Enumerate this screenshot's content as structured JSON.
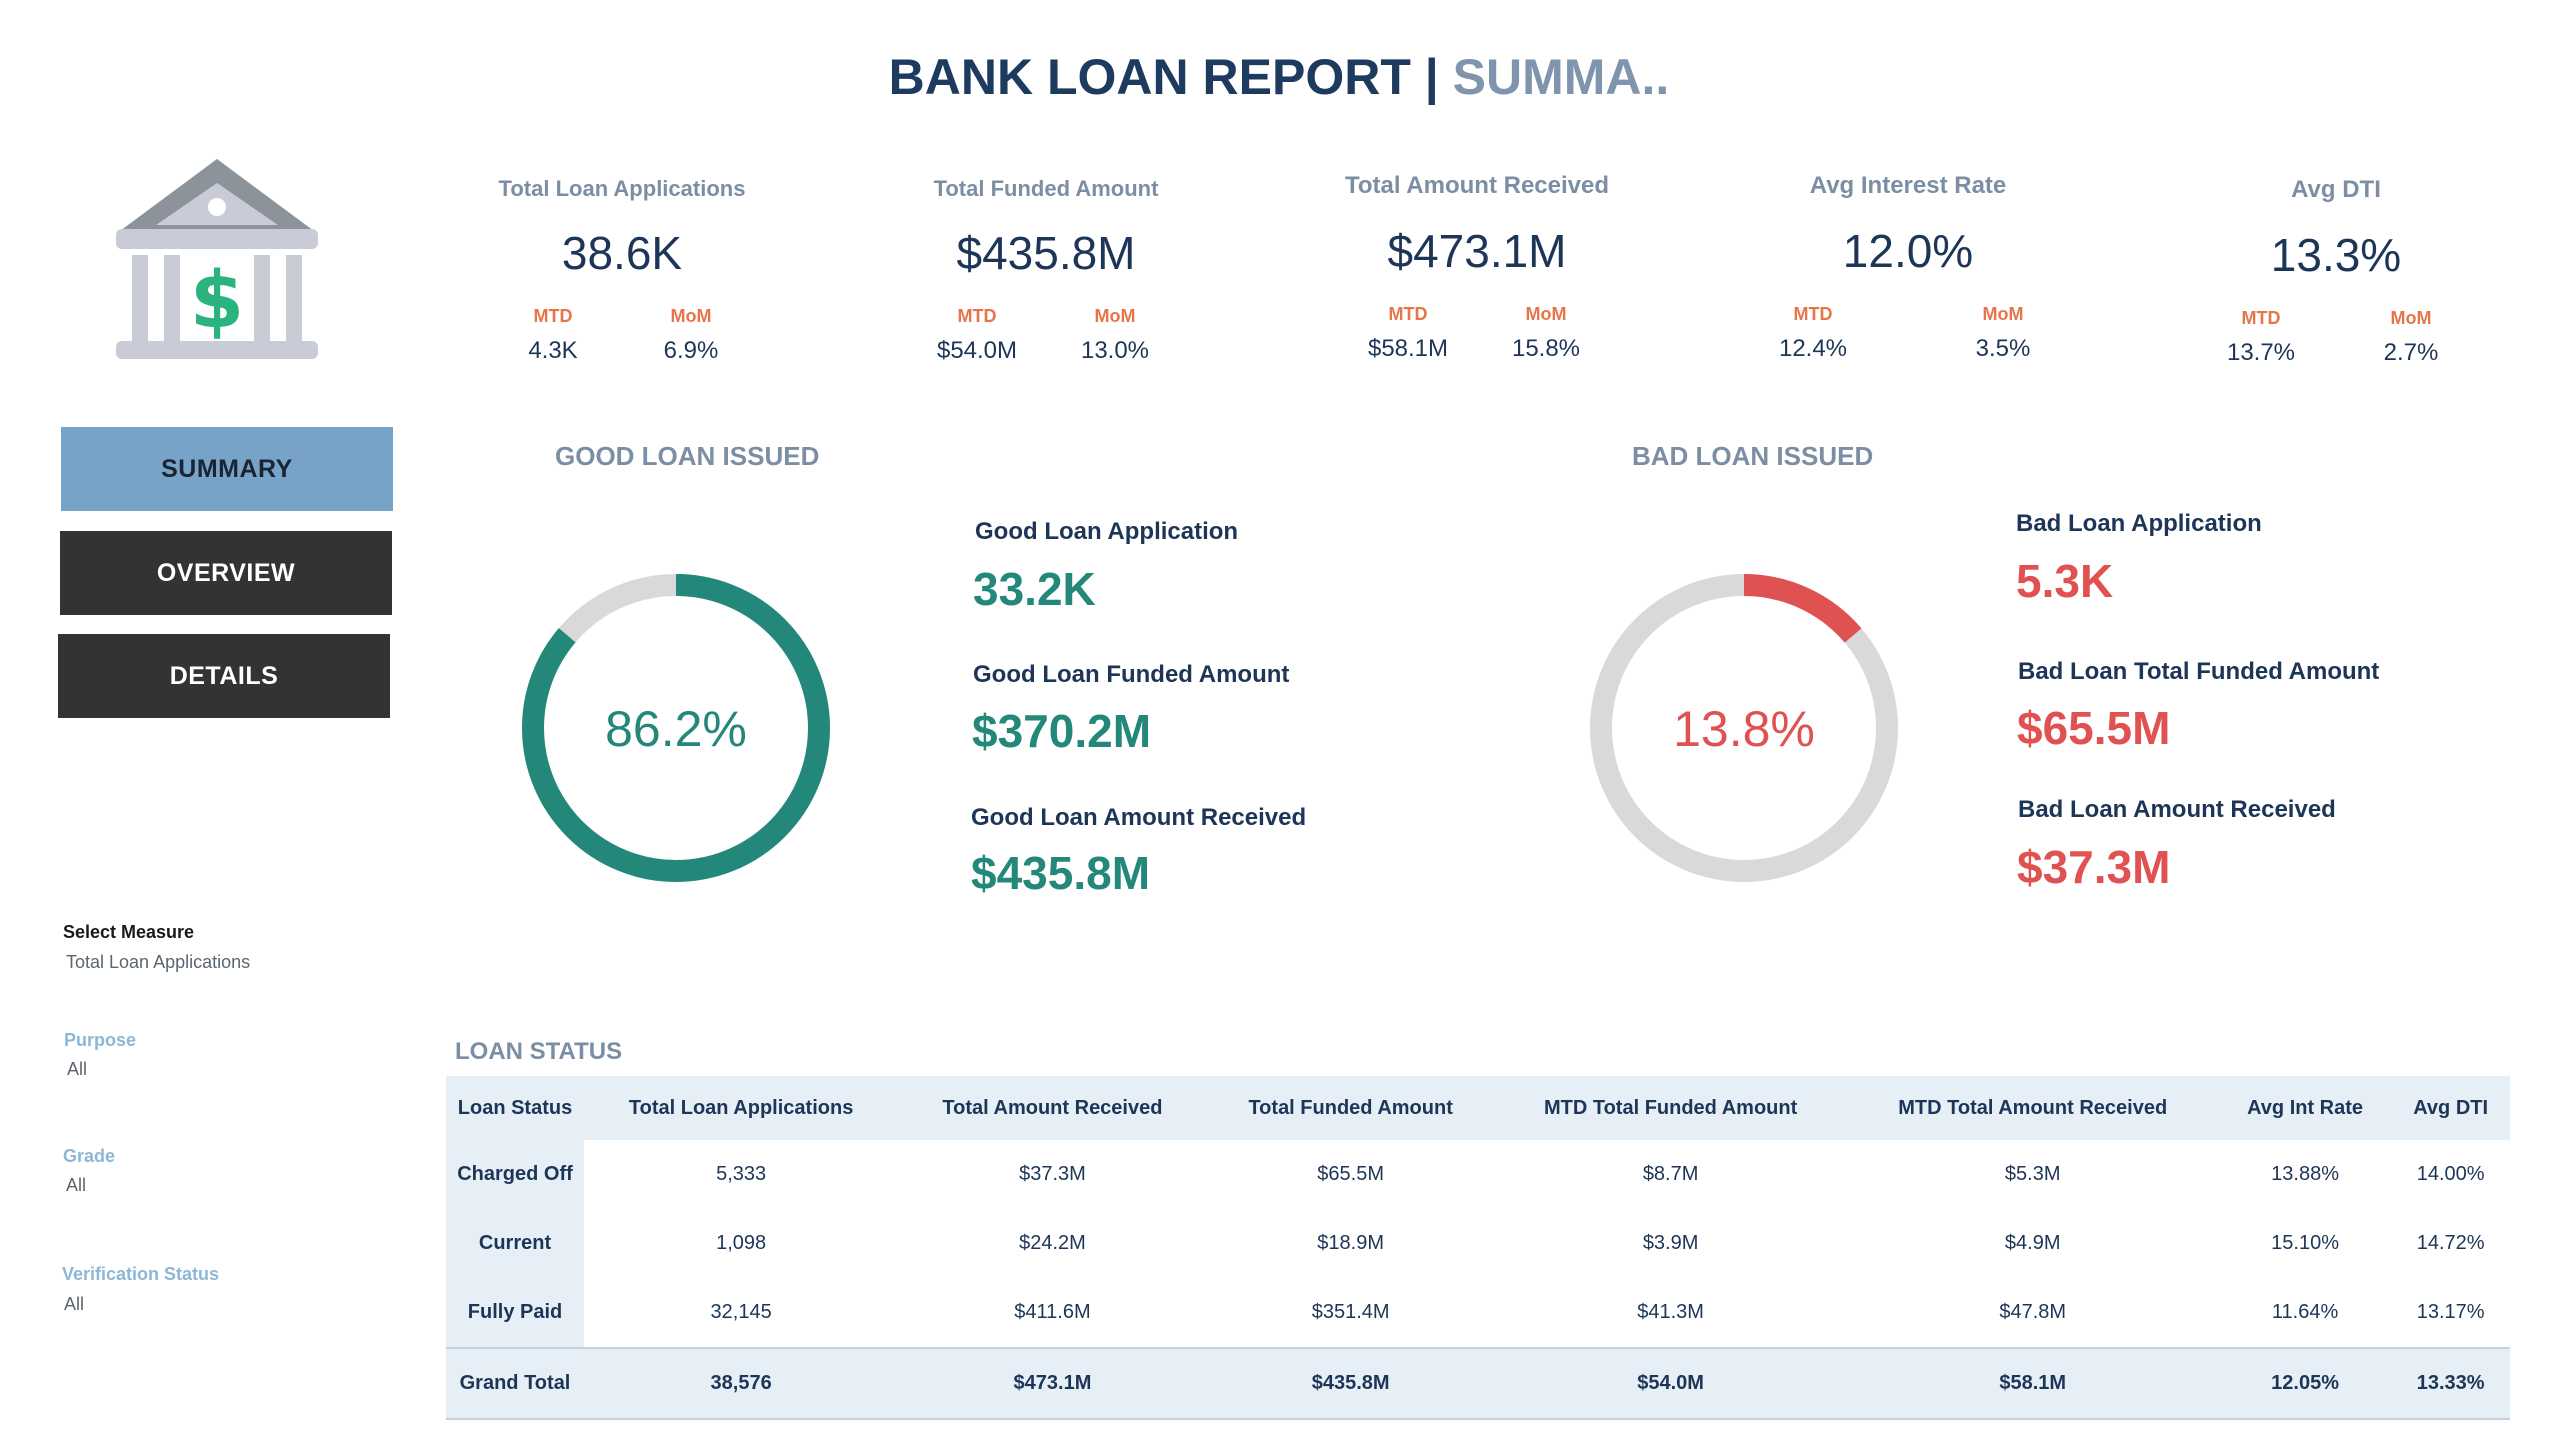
{
  "header": {
    "title_main": "BANK LOAN REPORT | ",
    "title_sub": "SUMMA.."
  },
  "icons": {
    "bank": "bank-building-dollar-icon"
  },
  "nav": {
    "summary": "SUMMARY",
    "overview": "OVERVIEW",
    "details": "DETAILS"
  },
  "filters": {
    "measure_label": "Select Measure",
    "measure_value": "Total Loan Applications",
    "purpose_label": "Purpose",
    "purpose_value": "All",
    "grade_label": "Grade",
    "grade_value": "All",
    "verification_label": "Verification Status",
    "verification_value": "All"
  },
  "kpis": [
    {
      "label": "Total Loan Applications",
      "value": "38.6K",
      "mtd_label": "MTD",
      "mtd": "4.3K",
      "mom_label": "MoM",
      "mom": "6.9%"
    },
    {
      "label": "Total Funded Amount",
      "value": "$435.8M",
      "mtd_label": "MTD",
      "mtd": "$54.0M",
      "mom_label": "MoM",
      "mom": "13.0%"
    },
    {
      "label": "Total Amount Received",
      "value": "$473.1M",
      "mtd_label": "MTD",
      "mtd": "$58.1M",
      "mom_label": "MoM",
      "mom": "15.8%"
    },
    {
      "label": "Avg Interest Rate",
      "value": "12.0%",
      "mtd_label": "MTD",
      "mtd": "12.4%",
      "mom_label": "MoM",
      "mom": "3.5%"
    },
    {
      "label": "Avg DTI",
      "value": "13.3%",
      "mtd_label": "MTD",
      "mtd": "13.7%",
      "mom_label": "MoM",
      "mom": "2.7%"
    }
  ],
  "good": {
    "title": "GOOD LOAN ISSUED",
    "percent_text": "86.2%",
    "percent": 86.2,
    "color": "#23877a",
    "app_label": "Good Loan Application",
    "app_value": "33.2K",
    "funded_label": "Good Loan Funded Amount",
    "funded_value": "$370.2M",
    "received_label": "Good Loan Amount Received",
    "received_value": "$435.8M"
  },
  "bad": {
    "title": "BAD LOAN ISSUED",
    "percent_text": "13.8%",
    "percent": 13.8,
    "color": "#e05252",
    "app_label": "Bad Loan Application",
    "app_value": "5.3K",
    "funded_label": "Bad Loan Total Funded Amount",
    "funded_value": "$65.5M",
    "received_label": "Bad Loan Amount Received",
    "received_value": "$37.3M"
  },
  "loan_status": {
    "title": "LOAN STATUS",
    "columns": [
      "Loan Status",
      "Total Loan Applications",
      "Total Amount Received",
      "Total Funded Amount",
      "MTD Total Funded Amount",
      "MTD Total Amount Received",
      "Avg Int Rate",
      "Avg DTI"
    ],
    "rows": [
      [
        "Charged Off",
        "5,333",
        "$37.3M",
        "$65.5M",
        "$8.7M",
        "$5.3M",
        "13.88%",
        "14.00%"
      ],
      [
        "Current",
        "1,098",
        "$24.2M",
        "$18.9M",
        "$3.9M",
        "$4.9M",
        "15.10%",
        "14.72%"
      ],
      [
        "Fully Paid",
        "32,145",
        "$411.6M",
        "$351.4M",
        "$41.3M",
        "$47.8M",
        "11.64%",
        "13.17%"
      ]
    ],
    "total": [
      "Grand Total",
      "38,576",
      "$473.1M",
      "$435.8M",
      "$54.0M",
      "$58.1M",
      "12.05%",
      "13.33%"
    ]
  }
}
